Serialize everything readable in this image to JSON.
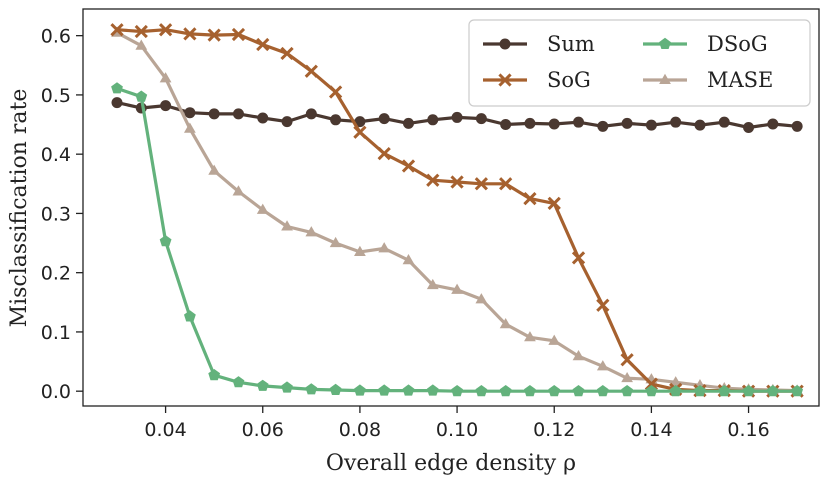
{
  "chart_data": {
    "type": "line",
    "title": "",
    "xlabel": "Overall edge density ρ",
    "ylabel": "Misclassification rate",
    "xlim": [
      0.023,
      0.1745
    ],
    "ylim": [
      -0.025,
      0.645
    ],
    "xticks": [
      0.04,
      0.06,
      0.08,
      0.1,
      0.12,
      0.14,
      0.16
    ],
    "xtick_labels": [
      "0.04",
      "0.06",
      "0.08",
      "0.10",
      "0.12",
      "0.14",
      "0.16"
    ],
    "yticks": [
      0.0,
      0.1,
      0.2,
      0.3,
      0.4,
      0.5,
      0.6
    ],
    "ytick_labels": [
      "0.0",
      "0.1",
      "0.2",
      "0.3",
      "0.4",
      "0.5",
      "0.6"
    ],
    "grid": false,
    "legend_position": "top-right",
    "x": [
      0.03,
      0.035,
      0.04,
      0.045,
      0.05,
      0.055,
      0.06,
      0.065,
      0.07,
      0.075,
      0.08,
      0.085,
      0.09,
      0.095,
      0.1,
      0.105,
      0.11,
      0.115,
      0.12,
      0.125,
      0.13,
      0.135,
      0.14,
      0.145,
      0.15,
      0.155,
      0.16,
      0.165,
      0.17
    ],
    "series": [
      {
        "name": "Sum",
        "color": "#4a3830",
        "marker": "circle",
        "values": [
          0.487,
          0.478,
          0.482,
          0.47,
          0.468,
          0.468,
          0.461,
          0.455,
          0.468,
          0.458,
          0.455,
          0.46,
          0.452,
          0.458,
          0.462,
          0.46,
          0.45,
          0.452,
          0.451,
          0.454,
          0.447,
          0.452,
          0.449,
          0.454,
          0.449,
          0.454,
          0.445,
          0.451,
          0.447
        ]
      },
      {
        "name": "SoG",
        "color": "#a6612f",
        "marker": "x",
        "values": [
          0.61,
          0.607,
          0.61,
          0.603,
          0.601,
          0.602,
          0.585,
          0.57,
          0.54,
          0.505,
          0.437,
          0.401,
          0.38,
          0.356,
          0.353,
          0.35,
          0.35,
          0.325,
          0.317,
          0.225,
          0.145,
          0.053,
          0.012,
          0.003,
          0.001,
          0.001,
          0.0,
          0.0,
          0.0
        ]
      },
      {
        "name": "DSoG",
        "color": "#63b27c",
        "marker": "pentagon",
        "values": [
          0.511,
          0.497,
          0.253,
          0.126,
          0.027,
          0.015,
          0.009,
          0.006,
          0.003,
          0.002,
          0.001,
          0.001,
          0.001,
          0.001,
          0.0,
          0.0,
          0.0,
          0.0,
          0.0,
          0.0,
          0.0,
          0.0,
          0.0,
          0.0,
          0.0,
          0.0,
          0.0,
          0.0,
          0.0
        ]
      },
      {
        "name": "MASE",
        "color": "#b9a596",
        "marker": "triangle",
        "values": [
          0.605,
          0.583,
          0.528,
          0.443,
          0.372,
          0.337,
          0.306,
          0.278,
          0.268,
          0.25,
          0.235,
          0.241,
          0.221,
          0.179,
          0.171,
          0.155,
          0.113,
          0.091,
          0.085,
          0.059,
          0.042,
          0.022,
          0.02,
          0.015,
          0.01,
          0.005,
          0.003,
          0.002,
          0.001
        ]
      }
    ]
  }
}
